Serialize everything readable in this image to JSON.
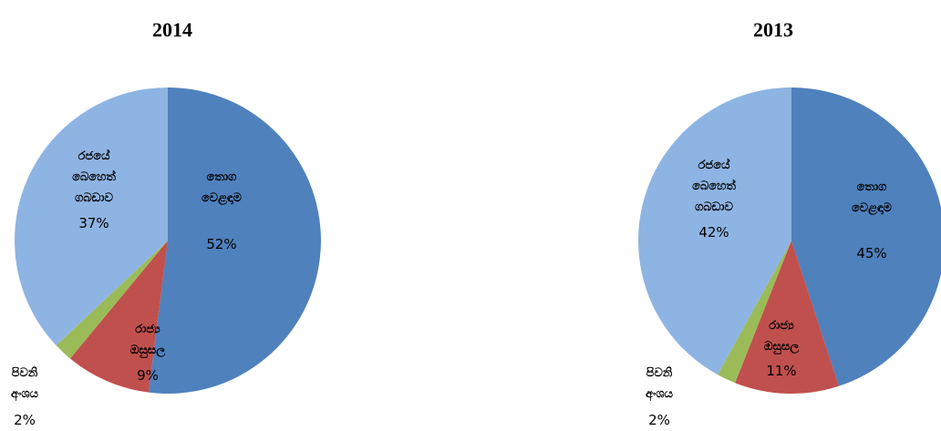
{
  "chart_data": [
    {
      "type": "pie",
      "title": "2014",
      "slices": [
        {
          "label": [
            "තොග",
            "වෙළඳාම"
          ],
          "value": 52,
          "display": "52%",
          "color": "#4f81bd"
        },
        {
          "label": [
            "රාජ්‍ය",
            "ඔසුසල"
          ],
          "value": 9,
          "display": "9%",
          "color": "#c0504d"
        },
        {
          "label": [
            "පිවනි",
            "අංශය"
          ],
          "value": 2,
          "display": "2%",
          "color": "#9bbb59"
        },
        {
          "label": [
            "රජයේ",
            "බෙහෙත්",
            "ගබඩාව"
          ],
          "value": 37,
          "display": "37%",
          "color": "#8eb4e3"
        }
      ]
    },
    {
      "type": "pie",
      "title": "2013",
      "slices": [
        {
          "label": [
            "තොග",
            "වෙළඳාම"
          ],
          "value": 45,
          "display": "45%",
          "color": "#4f81bd"
        },
        {
          "label": [
            "රාජ්‍ය",
            "ඔසුසල"
          ],
          "value": 11,
          "display": "11%",
          "color": "#c0504d"
        },
        {
          "label": [
            "පිවනි",
            "අංශය"
          ],
          "value": 2,
          "display": "2%",
          "color": "#9bbb59"
        },
        {
          "label": [
            "රජයේ",
            "බෙහෙත්",
            "ගබඩාව"
          ],
          "value": 42,
          "display": "42%",
          "color": "#8eb4e3"
        }
      ]
    }
  ]
}
